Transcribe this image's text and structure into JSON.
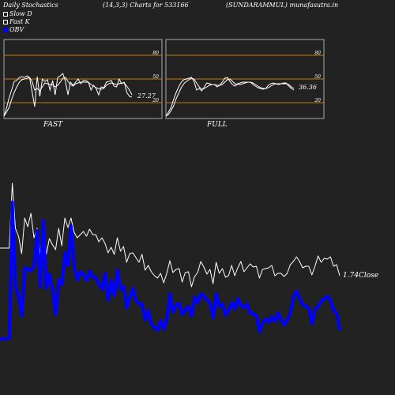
{
  "header": {
    "title": "Daily Stochastics",
    "params": "(14,3,3) Charts for 533166",
    "source": "(SUNDARAMMUL) munafasutra.in"
  },
  "legend": [
    {
      "label": "Slow  D",
      "color": "#ffffff"
    },
    {
      "label": "Fast K",
      "color": "#ffffff"
    },
    {
      "label": "OBV",
      "color": "#0000ff"
    }
  ],
  "chart_data": [
    {
      "type": "line",
      "title": "FAST",
      "ylim": [
        0,
        100
      ],
      "levels": [
        20,
        50,
        80
      ],
      "level_labels": [
        "80",
        "50",
        "20"
      ],
      "level_color": "#c87a00",
      "value_label": "27.27",
      "series": [
        {
          "values": [
            3,
            13,
            26,
            36,
            47,
            48,
            52,
            53,
            52,
            54,
            52,
            34,
            15,
            53,
            28,
            50,
            47,
            49,
            36,
            48,
            30,
            52,
            54,
            57,
            47,
            30,
            46,
            42,
            46,
            50,
            44,
            48,
            48,
            46,
            36,
            42,
            38,
            30,
            40,
            39,
            46,
            47,
            48,
            41,
            40,
            50,
            44,
            46,
            33,
            28,
            27
          ]
        },
        {
          "values": [
            3,
            8,
            14,
            24,
            33,
            40,
            46,
            49,
            50,
            51,
            52,
            47,
            36,
            38,
            35,
            40,
            45,
            44,
            43,
            43,
            40,
            42,
            46,
            51,
            52,
            47,
            43,
            41,
            44,
            45,
            46,
            46,
            46,
            46,
            43,
            41,
            39,
            38,
            37,
            38,
            42,
            44,
            45,
            44,
            43,
            44,
            45,
            45,
            41,
            36,
            30
          ]
        }
      ]
    },
    {
      "type": "line",
      "title": "FULL",
      "ylim": [
        0,
        100
      ],
      "levels": [
        20,
        50,
        80
      ],
      "level_labels": [
        "80",
        "50",
        "20"
      ],
      "level_color": "#c87a00",
      "value_label": "36.36",
      "series": [
        {
          "values": [
            3,
            8,
            14,
            24,
            33,
            40,
            46,
            49,
            50,
            51,
            52,
            47,
            36,
            38,
            35,
            40,
            45,
            44,
            43,
            43,
            40,
            42,
            46,
            51,
            52,
            47,
            43,
            41,
            44,
            45,
            46,
            46,
            46,
            46,
            43,
            41,
            39,
            38,
            37,
            38,
            42,
            44,
            45,
            44,
            43,
            44,
            45,
            45,
            41,
            38,
            36
          ]
        },
        {
          "values": [
            3,
            5,
            10,
            16,
            25,
            32,
            39,
            44,
            47,
            49,
            51,
            50,
            45,
            40,
            37,
            38,
            40,
            42,
            43,
            43,
            42,
            42,
            43,
            46,
            49,
            50,
            47,
            44,
            43,
            43,
            44,
            45,
            46,
            46,
            45,
            43,
            41,
            39,
            38,
            38,
            39,
            41,
            43,
            44,
            44,
            44,
            44,
            44,
            43,
            40,
            38
          ]
        }
      ]
    },
    {
      "type": "line",
      "value_label": "1.74Close",
      "series": [
        {
          "color": "#ffffff",
          "values": [
            314,
            314,
            314,
            314,
            232,
            289,
            299,
            321,
            276,
            287,
            270,
            301,
            289,
            322,
            279,
            322,
            302,
            310,
            316,
            289,
            311,
            276,
            288,
            276,
            294,
            301,
            297,
            293,
            299,
            290,
            297,
            297,
            306,
            301,
            308,
            320,
            313,
            322,
            301,
            318,
            312,
            332,
            321,
            320,
            326,
            332,
            322,
            342,
            336,
            344,
            349,
            352,
            346,
            358,
            346,
            330,
            345,
            341,
            340,
            357,
            345,
            344,
            363,
            350,
            345,
            331,
            338,
            347,
            341,
            359,
            332,
            346,
            340,
            351,
            349,
            336,
            349,
            339,
            331,
            344,
            339,
            334,
            338,
            337,
            352,
            341,
            340,
            339,
            336,
            349,
            346,
            346,
            350,
            346,
            335,
            331,
            325,
            331,
            339,
            337,
            337,
            348,
            337,
            324,
            332,
            327,
            328,
            325,
            337,
            335,
            349
          ]
        },
        {
          "color": "#0000ff",
          "values": [
            429,
            429,
            429,
            428,
            256,
            363,
            375,
            400,
            339,
            341,
            343,
            335,
            292,
            363,
            279,
            365,
            347,
            367,
            398,
            354,
            360,
            320,
            336,
            286,
            338,
            354,
            344,
            348,
            355,
            343,
            351,
            351,
            360,
            366,
            346,
            380,
            355,
            374,
            342,
            366,
            363,
            390,
            376,
            365,
            380,
            385,
            385,
            405,
            393,
            410,
            415,
            418,
            406,
            417,
            404,
            372,
            395,
            387,
            384,
            398,
            392,
            388,
            400,
            376,
            383,
            372,
            375,
            380,
            384,
            402,
            372,
            388,
            385,
            399,
            393,
            383,
            391,
            378,
            387,
            389,
            385,
            397,
            397,
            400,
            420,
            409,
            404,
            408,
            401,
            407,
            396,
            406,
            411,
            405,
            395,
            376,
            369,
            378,
            386,
            388,
            390,
            410,
            392,
            388,
            381,
            378,
            375,
            381,
            393,
            397,
            418
          ]
        }
      ]
    }
  ]
}
